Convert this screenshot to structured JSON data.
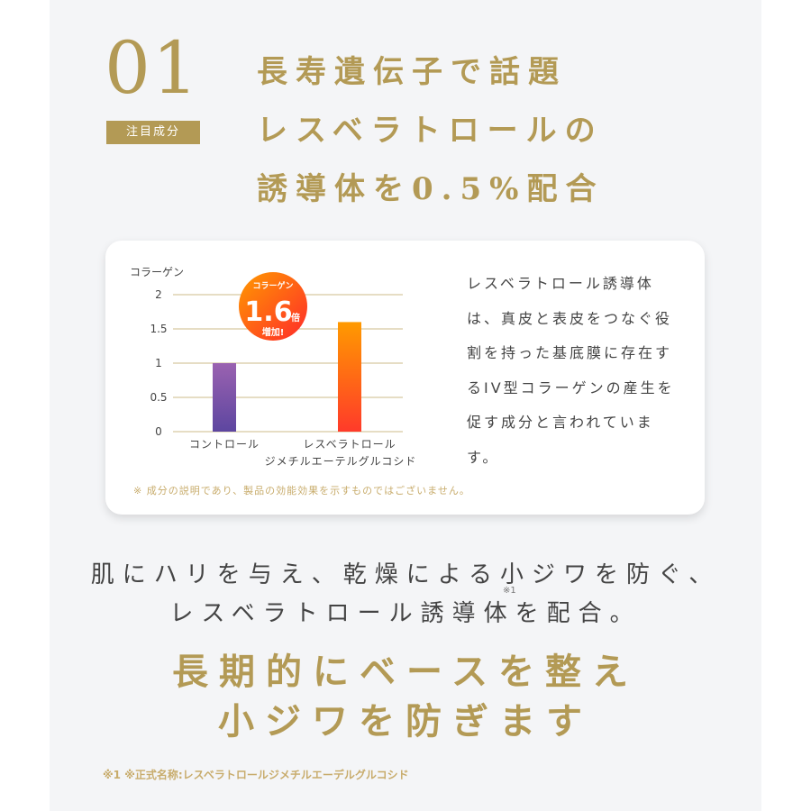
{
  "section": {
    "number": "01",
    "badge": "注目成分",
    "title_lines": [
      "長寿遺伝子で話題",
      "レスベラトロールの",
      "誘導体を0.5%配合"
    ]
  },
  "chart_data": {
    "type": "bar",
    "ylabel": "コラーゲン",
    "categories": [
      "コントロール",
      "レスベラトロール\nジメチルエーテルグルコシド"
    ],
    "category_lines": [
      [
        "コントロール"
      ],
      [
        "レスベラトロール",
        "ジメチルエーテルグルコシド"
      ]
    ],
    "values": [
      1,
      1.6
    ],
    "ylim": [
      0,
      2
    ],
    "yticks": [
      "0",
      "0.5",
      "1",
      "1.5",
      "2"
    ],
    "grid": true,
    "colors": {
      "control": [
        "#9a62b0",
        "#5d46a0"
      ],
      "resveratrol": [
        "#ff9a00",
        "#ff3a2a"
      ]
    },
    "callout": {
      "label": "コラーゲン",
      "value": "1.6",
      "unit": "倍",
      "text": "増加!"
    }
  },
  "card": {
    "description": "レスベラトロール誘導体は、真皮と表皮をつなぐ役割を持った基底膜に存在するIV型コラーゲンの産生を促す成分と言われています。",
    "note": "※ 成分の説明であり、製品の効能効果を示すものではございません。"
  },
  "lead": {
    "line1": "肌にハリを与え、乾燥による小ジワを防ぐ、",
    "line2": "レスベラトロール誘導体を配合。",
    "sup": "※1"
  },
  "headline": {
    "line1": "長期的にベースを整え",
    "line2": "小ジワを防ぎます"
  },
  "footnote": "※1 ※正式名称:レスベラトロールジメチルエーデルグルコシド",
  "colors": {
    "gold": "#b39a55",
    "panel": "#f4f5f7"
  }
}
